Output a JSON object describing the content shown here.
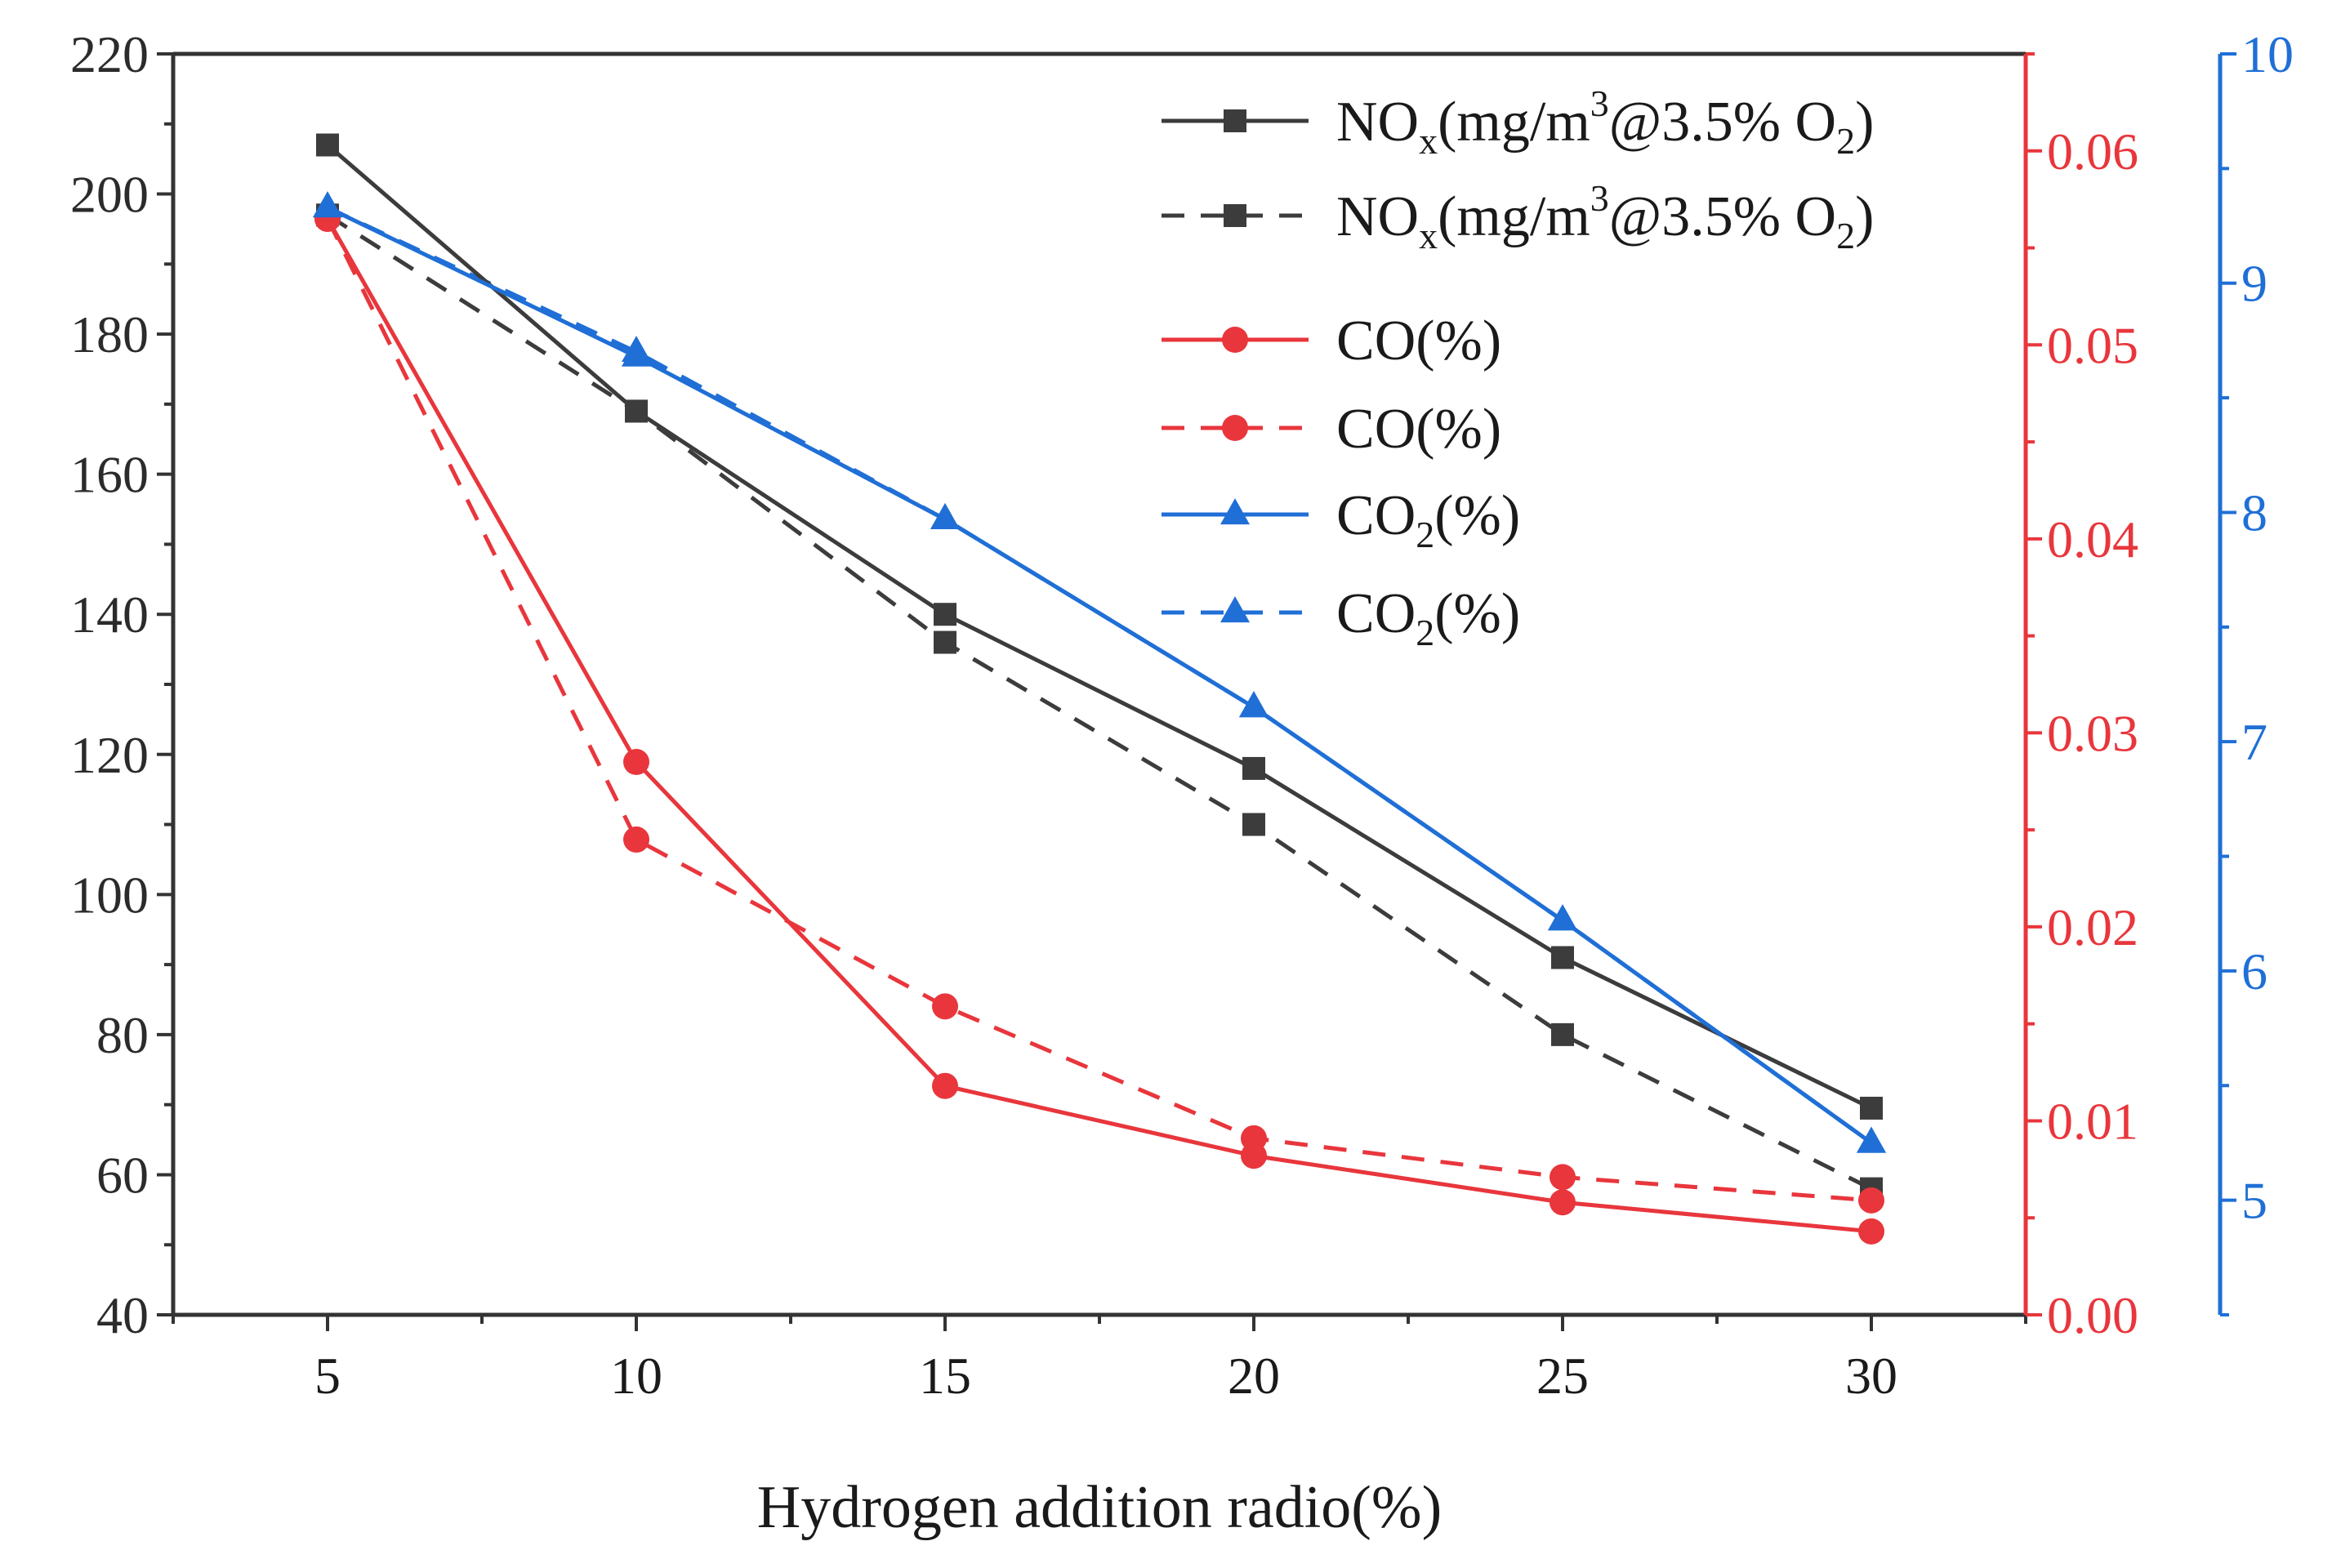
{
  "chart_data": {
    "type": "line",
    "title": "",
    "xlabel": "Hydrogen addition radio(%)",
    "x": [
      5,
      10,
      15,
      20,
      25,
      30
    ],
    "xticks": [
      "5",
      "10",
      "15",
      "20",
      "25",
      "30"
    ],
    "xlim": [
      2.5,
      32.5
    ],
    "grid": false,
    "legend_position": "top-right",
    "axes": {
      "left": {
        "ylim": [
          40,
          220
        ],
        "ticks": [
          "40",
          "60",
          "80",
          "100",
          "120",
          "140",
          "160",
          "180",
          "200",
          "220"
        ],
        "color": "#333333"
      },
      "right_red": {
        "ylim": [
          0,
          0.065
        ],
        "ticks": [
          "0.00",
          "0.01",
          "0.02",
          "0.03",
          "0.04",
          "0.05",
          "0.06"
        ],
        "color": "#e8363c"
      },
      "right_blue": {
        "ylim": [
          4.5,
          10
        ],
        "ticks": [
          "5",
          "6",
          "7",
          "8",
          "9",
          "10"
        ],
        "color": "#1f6fd6"
      }
    },
    "series": [
      {
        "legend": {
          "main": "NO",
          "sub1": "x",
          "mid": "(mg/m",
          "sup": "3",
          "mid2": "@3.5% O",
          "sub2": "2",
          "end": ")"
        },
        "axis": "left",
        "style": "solid",
        "marker": "square",
        "color": "#3c3c3c",
        "values": [
          207,
          169,
          140,
          118,
          91,
          69.5
        ]
      },
      {
        "legend": {
          "main": "NO",
          "sub1": "x",
          "mid": "(mg/m",
          "sup": "3",
          "mid2": "@3.5% O",
          "sub2": "2",
          "end": ")"
        },
        "axis": "left",
        "style": "dashed",
        "marker": "square",
        "color": "#3c3c3c",
        "values": [
          197,
          169,
          136,
          110,
          80,
          58
        ]
      },
      {
        "legend": {
          "main": "CO(%)"
        },
        "axis": "right_red",
        "style": "solid",
        "marker": "circle",
        "color": "#e8363c",
        "values": [
          0.0565,
          0.0285,
          0.0118,
          0.0082,
          0.0058,
          0.0043
        ]
      },
      {
        "legend": {
          "main": "CO(%)"
        },
        "axis": "right_red",
        "style": "dashed",
        "marker": "circle",
        "color": "#e8363c",
        "values": [
          0.0565,
          0.0245,
          0.0159,
          0.0091,
          0.0071,
          0.0059
        ]
      },
      {
        "legend": {
          "main": "CO",
          "sub1": "2",
          "end": "(%)"
        },
        "axis": "right_blue",
        "style": "solid",
        "marker": "triangle",
        "color": "#1f6fd6",
        "values": [
          9.33,
          8.68,
          7.97,
          7.15,
          6.22,
          5.25
        ]
      },
      {
        "legend": {
          "main": "CO",
          "sub1": "2",
          "end": "(%)"
        },
        "axis": "right_blue",
        "style": "dashed",
        "marker": "triangle",
        "color": "#1f6fd6",
        "values": [
          9.33,
          8.7,
          7.97,
          7.15,
          6.22,
          5.25
        ]
      }
    ]
  }
}
